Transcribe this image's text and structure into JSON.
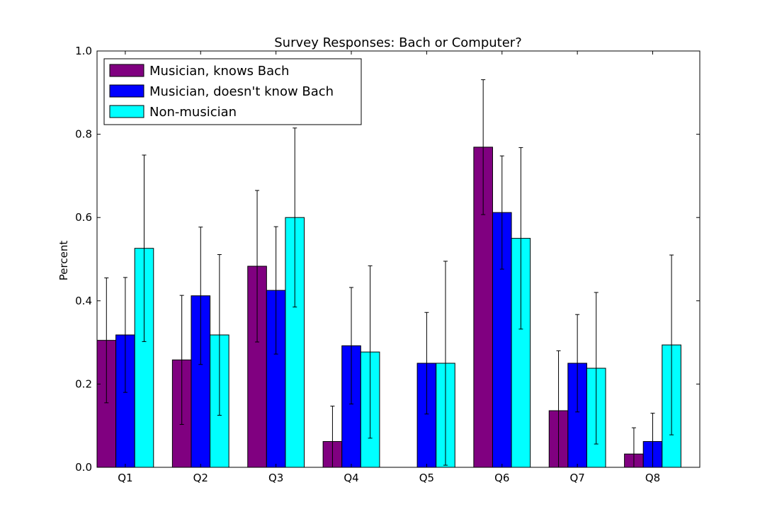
{
  "chart_data": {
    "type": "bar",
    "title": "Survey Responses: Bach or Computer?",
    "xlabel": "",
    "ylabel": "Percent",
    "ylim": [
      0,
      1.0
    ],
    "yticks": [
      "0.0",
      "0.2",
      "0.4",
      "0.6",
      "0.8",
      "1.0"
    ],
    "categories": [
      "Q1",
      "Q2",
      "Q3",
      "Q4",
      "Q5",
      "Q6",
      "Q7",
      "Q8"
    ],
    "grid": false,
    "legend_position": "top-left",
    "series": [
      {
        "name": "Musician, knows Bach",
        "color": "#800080",
        "values": [
          0.305,
          0.258,
          0.483,
          0.062,
          0.0,
          0.769,
          0.136,
          0.032
        ],
        "errors": [
          0.15,
          0.155,
          0.182,
          0.085,
          0.0,
          0.162,
          0.144,
          0.063
        ]
      },
      {
        "name": "Musician, doesn't know Bach",
        "color": "#0000ff",
        "values": [
          0.318,
          0.412,
          0.425,
          0.292,
          0.25,
          0.612,
          0.25,
          0.062
        ],
        "errors": [
          0.138,
          0.165,
          0.153,
          0.14,
          0.122,
          0.136,
          0.117,
          0.068
        ]
      },
      {
        "name": "Non-musician",
        "color": "#00ffff",
        "values": [
          0.526,
          0.318,
          0.6,
          0.277,
          0.25,
          0.55,
          0.238,
          0.294
        ],
        "errors": [
          0.224,
          0.193,
          0.215,
          0.207,
          0.245,
          0.218,
          0.182,
          0.216
        ]
      }
    ]
  }
}
